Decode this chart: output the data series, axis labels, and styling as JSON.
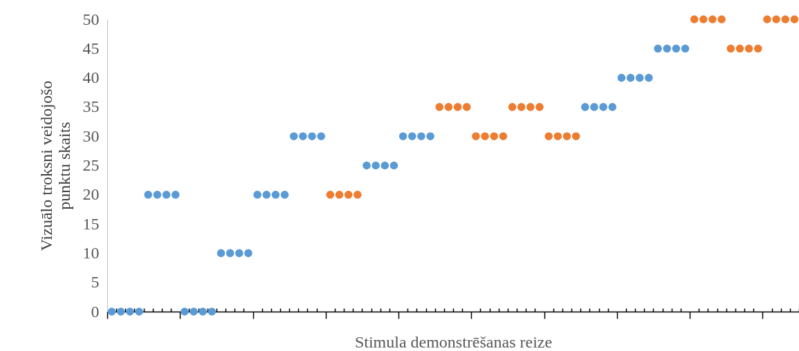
{
  "chart_data": {
    "type": "scatter",
    "xlabel": "Stimula demonstrēšanas reize",
    "ylabel": "Vizuālo troksni veidojošo punktu skaits",
    "categories": [
      null,
      null,
      null,
      null,
      null,
      null,
      null,
      null,
      null,
      null,
      null,
      null,
      null,
      null,
      null,
      null,
      null,
      null,
      null,
      null,
      null,
      null,
      null,
      null,
      null,
      null,
      null,
      null,
      null,
      null,
      null,
      null,
      null,
      null,
      null,
      null,
      null,
      null,
      null,
      null,
      null,
      null,
      null,
      null,
      null,
      null,
      null,
      null,
      null,
      null,
      null,
      null,
      null,
      null,
      null,
      null,
      null,
      null,
      null,
      null,
      null,
      null,
      null,
      null,
      null,
      null,
      null,
      null,
      null,
      null,
      null,
      null,
      null,
      null,
      null,
      null
    ],
    "ylim": [
      0,
      50
    ],
    "yticks": [
      0,
      5,
      10,
      15,
      20,
      25,
      30,
      35,
      40,
      45,
      50
    ],
    "grid": false,
    "marker": "circle",
    "series": [
      {
        "color": "#5b9bd5",
        "values": [
          0,
          0,
          0,
          0,
          20,
          20,
          20,
          20,
          0,
          0,
          0,
          0,
          10,
          10,
          10,
          10,
          20,
          20,
          20,
          20,
          30,
          30,
          30,
          30,
          null,
          null,
          null,
          null,
          25,
          25,
          25,
          25,
          30,
          30,
          30,
          30,
          null,
          null,
          null,
          null,
          null,
          null,
          null,
          null,
          null,
          null,
          null,
          null,
          null,
          null,
          null,
          null,
          35,
          35,
          35,
          35,
          40,
          40,
          40,
          40,
          45,
          45,
          45,
          45,
          null,
          null,
          null,
          null,
          null,
          null,
          null,
          null,
          null,
          null,
          null,
          null
        ]
      },
      {
        "color": "#ed7d31",
        "values": [
          null,
          null,
          null,
          null,
          null,
          null,
          null,
          null,
          null,
          null,
          null,
          null,
          null,
          null,
          null,
          null,
          null,
          null,
          null,
          null,
          null,
          null,
          null,
          null,
          20,
          20,
          20,
          20,
          null,
          null,
          null,
          null,
          null,
          null,
          null,
          null,
          35,
          35,
          35,
          35,
          30,
          30,
          30,
          30,
          35,
          35,
          35,
          35,
          30,
          30,
          30,
          30,
          null,
          null,
          null,
          null,
          null,
          null,
          null,
          null,
          null,
          null,
          null,
          null,
          50,
          50,
          50,
          50,
          45,
          45,
          45,
          45,
          50,
          50,
          50,
          50
        ]
      }
    ]
  }
}
